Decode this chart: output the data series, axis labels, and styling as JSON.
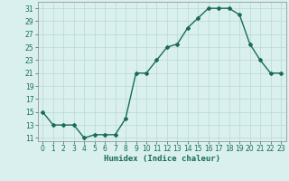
{
  "x": [
    0,
    1,
    2,
    3,
    4,
    5,
    6,
    7,
    8,
    9,
    10,
    11,
    12,
    13,
    14,
    15,
    16,
    17,
    18,
    19,
    20,
    21,
    22,
    23
  ],
  "y": [
    15,
    13,
    13,
    13,
    11,
    11.5,
    11.5,
    11.5,
    14,
    21,
    21,
    23,
    25,
    25.5,
    28,
    29.5,
    31,
    31,
    31,
    30,
    25.5,
    23,
    21,
    21
  ],
  "line_color": "#1a6b5a",
  "marker": "D",
  "marker_size": 2,
  "background_color": "#d9f0ee",
  "grid_color": "#b8d8d4",
  "xlabel": "Humidex (Indice chaleur)",
  "ylim": [
    10.5,
    32
  ],
  "xlim": [
    -0.5,
    23.5
  ],
  "yticks": [
    11,
    13,
    15,
    17,
    19,
    21,
    23,
    25,
    27,
    29,
    31
  ],
  "xticks": [
    0,
    1,
    2,
    3,
    4,
    5,
    6,
    7,
    8,
    9,
    10,
    11,
    12,
    13,
    14,
    15,
    16,
    17,
    18,
    19,
    20,
    21,
    22,
    23
  ],
  "tick_fontsize": 5.5,
  "xlabel_fontsize": 6.5,
  "line_width": 1.0
}
